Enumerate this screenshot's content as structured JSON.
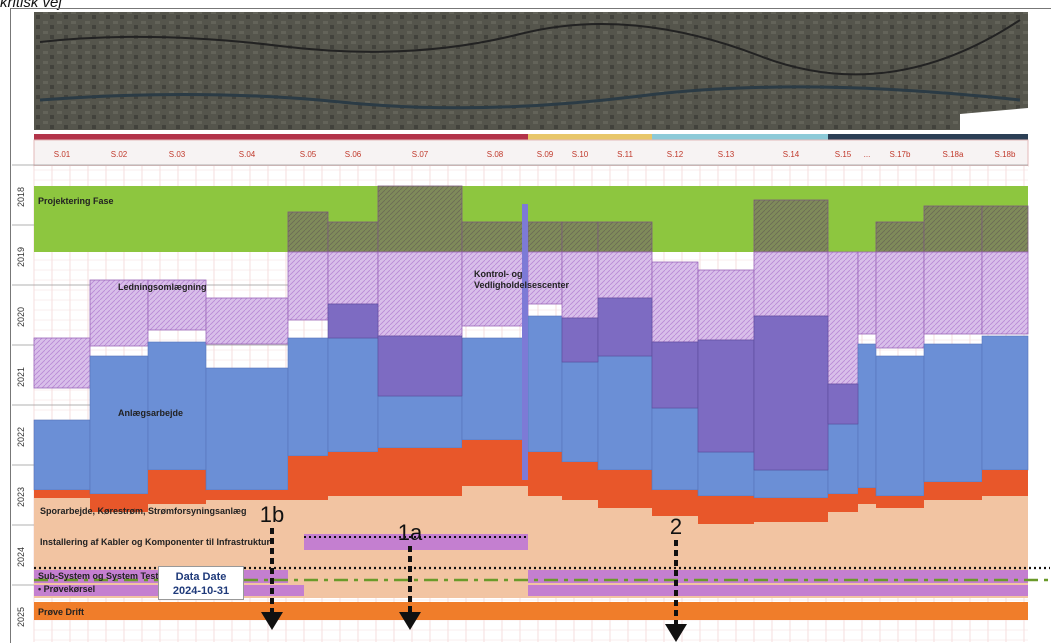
{
  "title": "kritisk vej",
  "data_date": {
    "label": "Data Date",
    "value": "2024-10-31"
  },
  "colors": {
    "projektering": "#8dc63f",
    "ledning": "#c9a9e3",
    "anlaeg": "#6b8fd6",
    "anlaeg_dark": "#7d6bc2",
    "spor": "#e8572a",
    "installering": "#f2c4a2",
    "subsystem": "#c47fd0",
    "proevedrift": "#f07d2a"
  },
  "chart_data": {
    "type": "gantt",
    "years": [
      "2018",
      "2019",
      "2020",
      "2021",
      "2022",
      "2023",
      "2024",
      "2025"
    ],
    "sections": [
      "S.01",
      "S.02",
      "S.03",
      "S.04",
      "S.05",
      "S.06",
      "S.07",
      "S.08",
      "S.09",
      "S.10",
      "S.11",
      "S.12",
      "S.13",
      "S.14",
      "S.15",
      "...",
      "S.17b",
      "S.18a",
      "S.18b"
    ],
    "phase_labels": [
      {
        "text": "Projektering Fase",
        "phase": "projektering"
      },
      {
        "text": "Ledningsomlægning",
        "phase": "ledning"
      },
      {
        "text": "Kontrol- og Vedligholdelsescenter",
        "phase": "kontrol"
      },
      {
        "text": "Anlægsarbejde",
        "phase": "anlaeg"
      },
      {
        "text": "Sporarbejde, Kørestrøm, Strømforsyningsanlæg",
        "phase": "spor"
      },
      {
        "text": "Installering af Kabler og Komponenter til Infrastruktur",
        "phase": "installering"
      },
      {
        "text": "Sub-System og System Test",
        "phase": "subsystem"
      },
      {
        "text": "• Prøvekørsel",
        "phase": "proevekoersel"
      },
      {
        "text": "Prøve Drift",
        "phase": "proevedrift"
      }
    ],
    "markers": [
      {
        "label": "1b"
      },
      {
        "label": "1a"
      },
      {
        "label": "2"
      }
    ]
  }
}
